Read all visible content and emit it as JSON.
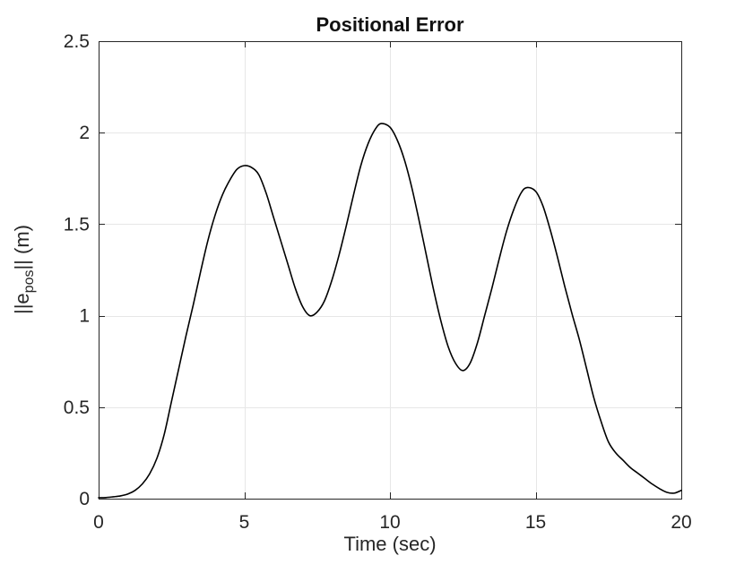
{
  "chart_data": {
    "type": "line",
    "title": "Positional Error",
    "xlabel": "Time (sec)",
    "ylabel": {
      "pre": "||e",
      "sub": "pos",
      "post": "|| (m)"
    },
    "xlim": [
      0,
      20
    ],
    "ylim": [
      0,
      2.5
    ],
    "xticks": {
      "values": [
        0,
        5,
        10,
        15,
        20
      ],
      "labels": [
        "0",
        "5",
        "10",
        "15",
        "20"
      ]
    },
    "yticks": {
      "values": [
        0,
        0.5,
        1,
        1.5,
        2,
        2.5
      ],
      "labels": [
        "0",
        "0.5",
        "1",
        "1.5",
        "2",
        "2.5"
      ]
    },
    "grid": true,
    "legend": null,
    "colors": {
      "line": "#000000",
      "axis": "#262626",
      "grid": "#e7e7e7",
      "background": "#ffffff"
    },
    "key_points": {
      "peaks": [
        {
          "t": 5.0,
          "value": 1.82
        },
        {
          "t": 9.7,
          "value": 2.05
        },
        {
          "t": 14.7,
          "value": 1.7
        }
      ],
      "valleys": [
        {
          "t": 7.25,
          "value": 1.0
        },
        {
          "t": 12.5,
          "value": 0.7
        }
      ],
      "start": {
        "t": 0,
        "value": 0.0
      },
      "end": {
        "t": 20,
        "value": 0.045
      }
    },
    "series": [
      {
        "name": "positional-error",
        "x": [
          0,
          0.25,
          0.5,
          0.75,
          1,
          1.25,
          1.5,
          1.75,
          2,
          2.25,
          2.5,
          2.75,
          3,
          3.25,
          3.5,
          3.75,
          4,
          4.25,
          4.5,
          4.75,
          5,
          5.25,
          5.5,
          5.75,
          6,
          6.25,
          6.5,
          6.75,
          7,
          7.25,
          7.5,
          7.75,
          8,
          8.25,
          8.5,
          8.75,
          9,
          9.25,
          9.5,
          9.7,
          10,
          10.25,
          10.5,
          10.75,
          11,
          11.25,
          11.5,
          11.75,
          12,
          12.25,
          12.5,
          12.75,
          13,
          13.25,
          13.5,
          13.75,
          14,
          14.25,
          14.5,
          14.7,
          15,
          15.25,
          15.5,
          15.75,
          16,
          16.25,
          16.5,
          16.75,
          17,
          17.25,
          17.5,
          17.75,
          18,
          18.25,
          18.5,
          18.75,
          19,
          19.25,
          19.5,
          19.75,
          20
        ],
        "y": [
          0.005,
          0.006,
          0.01,
          0.015,
          0.025,
          0.045,
          0.08,
          0.135,
          0.22,
          0.35,
          0.53,
          0.71,
          0.89,
          1.06,
          1.24,
          1.41,
          1.55,
          1.66,
          1.74,
          1.8,
          1.82,
          1.81,
          1.77,
          1.67,
          1.54,
          1.41,
          1.28,
          1.15,
          1.05,
          1.0,
          1.02,
          1.08,
          1.19,
          1.33,
          1.49,
          1.66,
          1.82,
          1.94,
          2.02,
          2.05,
          2.03,
          1.96,
          1.85,
          1.7,
          1.52,
          1.33,
          1.14,
          0.97,
          0.83,
          0.74,
          0.7,
          0.74,
          0.85,
          1.0,
          1.15,
          1.31,
          1.46,
          1.58,
          1.67,
          1.7,
          1.68,
          1.6,
          1.47,
          1.32,
          1.16,
          1.01,
          0.87,
          0.71,
          0.55,
          0.42,
          0.31,
          0.25,
          0.21,
          0.17,
          0.14,
          0.11,
          0.08,
          0.055,
          0.035,
          0.03,
          0.045
        ]
      }
    ]
  }
}
